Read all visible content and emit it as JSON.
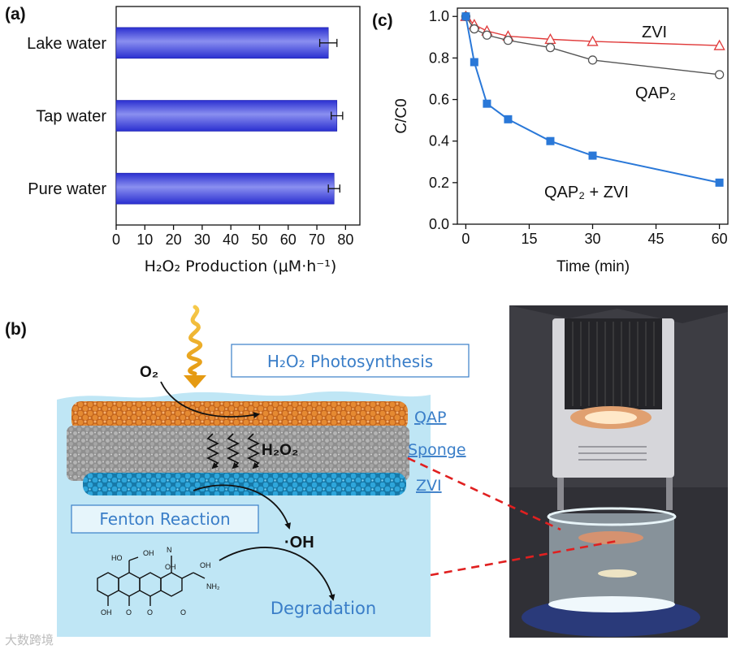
{
  "panel_a": {
    "label": "(a)",
    "xlabel": "H₂O₂ Production (μM·h⁻¹)",
    "chart_data": {
      "type": "bar",
      "orientation": "horizontal",
      "categories": [
        "Lake water",
        "Tap water",
        "Pure water"
      ],
      "values": [
        74,
        77,
        76
      ],
      "errors": [
        3,
        2,
        2
      ],
      "xlim": [
        0,
        85
      ],
      "xticks": [
        "0",
        "10",
        "20",
        "30",
        "40",
        "50",
        "60",
        "70",
        "80"
      ],
      "bar_color": "#3d43d6"
    }
  },
  "panel_c": {
    "label": "(c)",
    "xlabel": "Time (min)",
    "ylabel": "C/C0",
    "chart_data": {
      "type": "line",
      "x": [
        0,
        2,
        5,
        10,
        20,
        30,
        60
      ],
      "xlim": [
        -2,
        62
      ],
      "ylim": [
        0,
        1.04
      ],
      "xticks": [
        "0",
        "15",
        "30",
        "45",
        "60"
      ],
      "yticks": [
        "0.0",
        "0.2",
        "0.4",
        "0.6",
        "0.8",
        "1.0"
      ],
      "series": [
        {
          "name": "ZVI",
          "values": [
            1.0,
            0.96,
            0.93,
            0.905,
            0.89,
            0.88,
            0.86
          ],
          "color": "#e03a3a",
          "marker": "triangle-open"
        },
        {
          "name": "QAP₂",
          "values": [
            1.0,
            0.94,
            0.91,
            0.885,
            0.85,
            0.79,
            0.72
          ],
          "color": "#555555",
          "marker": "circle-open"
        },
        {
          "name": "QAP₂ + ZVI",
          "values": [
            1.0,
            0.78,
            0.58,
            0.505,
            0.4,
            0.33,
            0.2
          ],
          "color": "#2a78d8",
          "marker": "square-filled"
        }
      ]
    }
  },
  "panel_b": {
    "label": "(b)",
    "photosynthesis_label": "H₂O₂ Photosynthesis",
    "fenton_label": "Fenton Reaction",
    "o2_label": "O₂",
    "h2o2_label": "H₂O₂",
    "oh_label": "·OH",
    "degradation_label": "Degradation",
    "layer_labels": [
      "QAP",
      "Sponge",
      "ZVI"
    ],
    "molecule_labels": [
      "HO",
      "N",
      "OH",
      "NH₂",
      "OH",
      "OH",
      "O",
      "O",
      "OH",
      "O"
    ]
  },
  "watermark": "大数跨境"
}
